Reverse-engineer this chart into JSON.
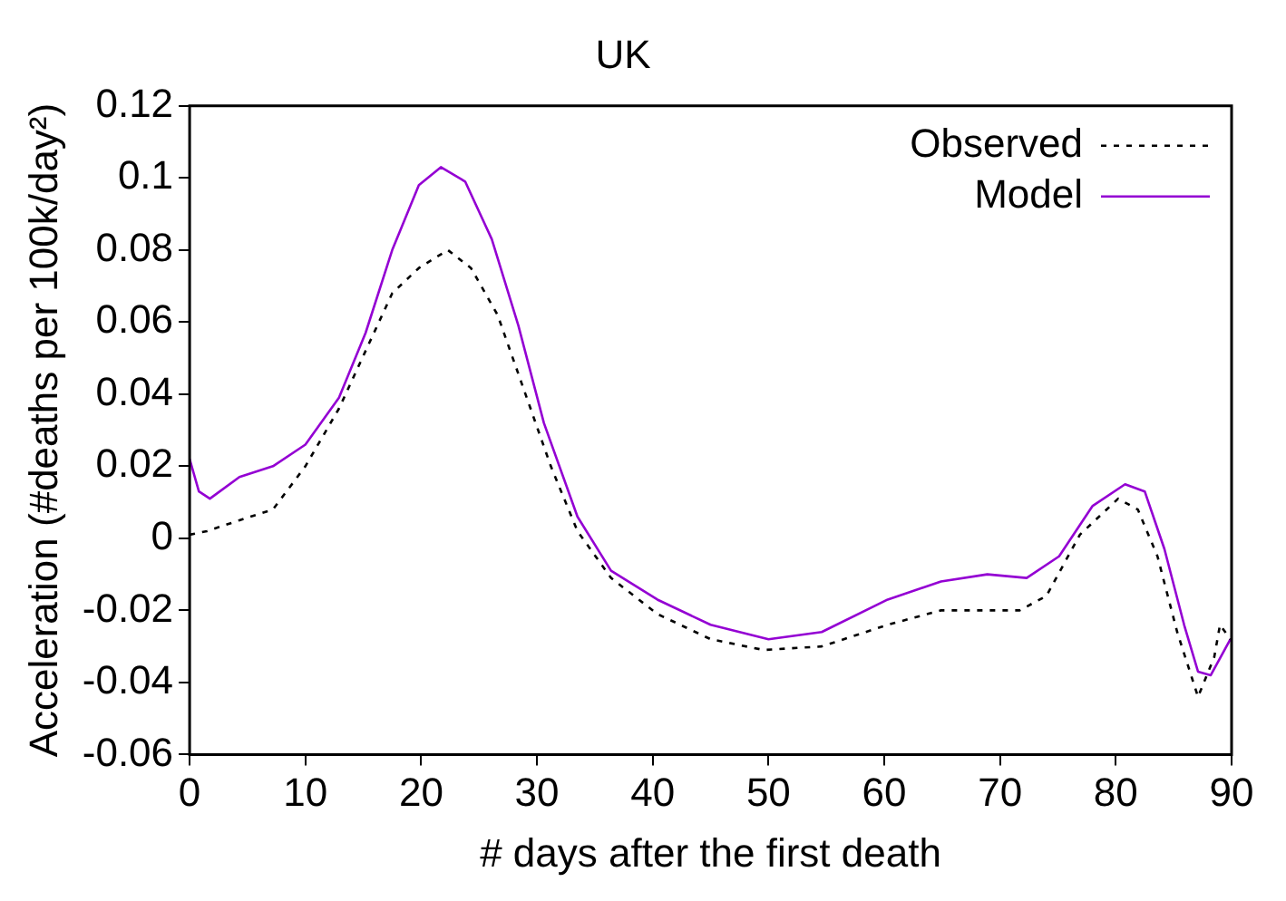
{
  "chart_data": {
    "type": "line",
    "title": "UK",
    "xlabel": "# days after the first death",
    "ylabel": "Acceleration (#deaths per 100k/day²)",
    "xlim": [
      0,
      90
    ],
    "xticks": [
      0,
      10,
      20,
      30,
      40,
      50,
      60,
      70,
      80,
      90
    ],
    "ylim": [
      -0.06,
      0.12
    ],
    "yticks": [
      -0.06,
      -0.04,
      -0.02,
      0,
      0.02,
      0.04,
      0.06,
      0.08,
      0.1,
      0.12
    ],
    "grid": false,
    "legend": "top right",
    "marker": "none",
    "series": [
      {
        "name": "Observed",
        "color": "#000000",
        "line_style": "dotted",
        "x": [
          0,
          1.5,
          4.3,
          7.2,
          10,
          12.9,
          15.2,
          17.5,
          19.8,
          22.3,
          24.3,
          26.6,
          28.9,
          31.2,
          33.5,
          36.4,
          40.4,
          45,
          49.6,
          54.6,
          60.3,
          64.9,
          68.9,
          71.7,
          74,
          76.9,
          80.2,
          81.9,
          83.6,
          85.3,
          87.1,
          88.5,
          89,
          89.9
        ],
        "values": [
          0.001,
          0.002,
          0.005,
          0.008,
          0.02,
          0.036,
          0.052,
          0.068,
          0.075,
          0.08,
          0.075,
          0.062,
          0.041,
          0.02,
          0.002,
          -0.011,
          -0.021,
          -0.028,
          -0.031,
          -0.03,
          -0.024,
          -0.02,
          -0.02,
          -0.02,
          -0.016,
          0.001,
          0.011,
          0.008,
          -0.005,
          -0.026,
          -0.044,
          -0.033,
          -0.024,
          -0.028
        ]
      },
      {
        "name": "Model",
        "color": "#9400d3",
        "line_style": "solid",
        "x": [
          0,
          0.8,
          1.75,
          4.3,
          7.2,
          10,
          12.9,
          15.2,
          17.5,
          19.8,
          21.7,
          23.8,
          26.1,
          28.4,
          30.6,
          33.5,
          36.4,
          40.4,
          45,
          50,
          54.6,
          60.3,
          64.9,
          68.9,
          72.3,
          75.1,
          78,
          80.8,
          82.5,
          84.2,
          85.9,
          87.1,
          88.2,
          89.9
        ],
        "values": [
          0.022,
          0.013,
          0.011,
          0.017,
          0.02,
          0.026,
          0.039,
          0.057,
          0.08,
          0.098,
          0.103,
          0.099,
          0.083,
          0.059,
          0.032,
          0.006,
          -0.009,
          -0.017,
          -0.024,
          -0.028,
          -0.026,
          -0.017,
          -0.012,
          -0.01,
          -0.011,
          -0.005,
          0.009,
          0.015,
          0.013,
          -0.003,
          -0.024,
          -0.037,
          -0.038,
          -0.028
        ]
      }
    ]
  }
}
